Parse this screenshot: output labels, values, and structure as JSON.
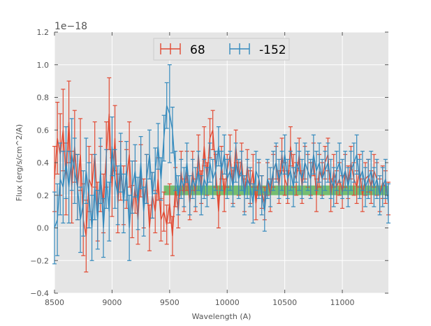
{
  "chart_data": {
    "type": "line",
    "title": "",
    "xlabel": "Wavelength (A)",
    "ylabel": "Flux (erg/s/cm^2/A)",
    "y_offset_label": "1e−18",
    "xlim": [
      8500,
      11400
    ],
    "ylim": [
      -0.4,
      1.2
    ],
    "x_ticks": [
      8500,
      9000,
      9500,
      10000,
      10500,
      11000
    ],
    "x_tick_labels": [
      "8500",
      "9000",
      "9500",
      "10000",
      "10500",
      "11000"
    ],
    "y_ticks": [
      -0.4,
      -0.2,
      0.0,
      0.2,
      0.4,
      0.6,
      0.8,
      1.0,
      1.2
    ],
    "y_tick_labels": [
      "−0.4",
      "−0.2",
      "0.0",
      "0.2",
      "0.4",
      "0.6",
      "0.8",
      "1.0",
      "1.2"
    ],
    "grid": true,
    "legend_position": "top-center",
    "band": {
      "x_start": 9450,
      "x_end": 11400,
      "y_low": 0.2,
      "y_high": 0.26,
      "color": "#4daf4a"
    },
    "x": [
      8500,
      8525,
      8550,
      8575,
      8600,
      8625,
      8650,
      8675,
      8700,
      8725,
      8750,
      8775,
      8800,
      8825,
      8850,
      8875,
      8900,
      8925,
      8950,
      8975,
      9000,
      9025,
      9050,
      9075,
      9100,
      9125,
      9150,
      9175,
      9200,
      9225,
      9250,
      9275,
      9300,
      9325,
      9350,
      9375,
      9400,
      9425,
      9450,
      9475,
      9500,
      9525,
      9550,
      9575,
      9600,
      9625,
      9650,
      9675,
      9700,
      9725,
      9750,
      9775,
      9800,
      9825,
      9850,
      9875,
      9900,
      9925,
      9950,
      9975,
      10000,
      10025,
      10050,
      10075,
      10100,
      10125,
      10150,
      10175,
      10200,
      10225,
      10250,
      10275,
      10300,
      10325,
      10350,
      10375,
      10400,
      10425,
      10450,
      10475,
      10500,
      10525,
      10550,
      10575,
      10600,
      10625,
      10650,
      10675,
      10700,
      10725,
      10750,
      10775,
      10800,
      10825,
      10850,
      10875,
      10900,
      10925,
      10950,
      10975,
      11000,
      11025,
      11050,
      11075,
      11100,
      11125,
      11150,
      11175,
      11200,
      11225,
      11250,
      11275,
      11300,
      11325,
      11350,
      11375,
      11400
    ],
    "series": [
      {
        "name": "68",
        "color": "#E24A33",
        "values": [
          0.3,
          0.55,
          0.45,
          0.6,
          0.3,
          0.65,
          0.25,
          0.5,
          0.25,
          0.45,
          0.05,
          -0.05,
          0.3,
          0.25,
          0.45,
          0.1,
          0.3,
          0.15,
          0.45,
          0.7,
          0.25,
          0.55,
          0.15,
          0.35,
          0.2,
          0.3,
          0.45,
          0.1,
          0.25,
          0.05,
          0.35,
          0.15,
          0.3,
          0.0,
          0.2,
          0.1,
          0.3,
          0.05,
          0.1,
          0.02,
          0.15,
          -0.05,
          0.25,
          0.1,
          0.35,
          0.2,
          0.35,
          0.15,
          0.35,
          0.2,
          0.45,
          0.25,
          0.5,
          0.3,
          0.55,
          0.6,
          0.35,
          0.1,
          0.4,
          0.2,
          0.35,
          0.45,
          0.25,
          0.5,
          0.3,
          0.42,
          0.2,
          0.38,
          0.25,
          0.35,
          0.15,
          0.3,
          0.22,
          0.15,
          0.3,
          0.2,
          0.35,
          0.4,
          0.25,
          0.45,
          0.3,
          0.25,
          0.5,
          0.35,
          0.3,
          0.45,
          0.25,
          0.4,
          0.35,
          0.3,
          0.42,
          0.2,
          0.35,
          0.3,
          0.4,
          0.45,
          0.2,
          0.35,
          0.25,
          0.3,
          0.22,
          0.35,
          0.28,
          0.4,
          0.3,
          0.25,
          0.35,
          0.2,
          0.3,
          0.32,
          0.25,
          0.35,
          0.3,
          0.2,
          0.28,
          0.25,
          0.18
        ],
        "errors": [
          0.2,
          0.22,
          0.25,
          0.25,
          0.22,
          0.25,
          0.22,
          0.22,
          0.2,
          0.22,
          0.22,
          0.22,
          0.2,
          0.2,
          0.2,
          0.18,
          0.2,
          0.18,
          0.2,
          0.22,
          0.18,
          0.2,
          0.18,
          0.18,
          0.18,
          0.18,
          0.2,
          0.16,
          0.16,
          0.15,
          0.16,
          0.15,
          0.15,
          0.14,
          0.14,
          0.13,
          0.13,
          0.13,
          0.12,
          0.12,
          0.12,
          0.12,
          0.12,
          0.1,
          0.12,
          0.1,
          0.12,
          0.1,
          0.12,
          0.1,
          0.12,
          0.1,
          0.12,
          0.1,
          0.12,
          0.12,
          0.1,
          0.1,
          0.1,
          0.1,
          0.1,
          0.12,
          0.1,
          0.1,
          0.1,
          0.1,
          0.1,
          0.1,
          0.1,
          0.1,
          0.1,
          0.1,
          0.1,
          0.1,
          0.1,
          0.1,
          0.1,
          0.1,
          0.1,
          0.1,
          0.1,
          0.1,
          0.12,
          0.1,
          0.1,
          0.1,
          0.1,
          0.1,
          0.1,
          0.1,
          0.1,
          0.1,
          0.1,
          0.1,
          0.1,
          0.1,
          0.1,
          0.1,
          0.1,
          0.1,
          0.1,
          0.1,
          0.1,
          0.1,
          0.1,
          0.1,
          0.1,
          0.1,
          0.1,
          0.1,
          0.1,
          0.1,
          0.1,
          0.1,
          0.1,
          0.1,
          0.1
        ]
      },
      {
        "name": "-152",
        "color": "#348ABD",
        "values": [
          0.0,
          0.05,
          0.3,
          0.25,
          0.4,
          0.25,
          0.45,
          0.35,
          0.25,
          0.05,
          0.15,
          0.35,
          0.2,
          0.0,
          0.25,
          0.05,
          0.35,
          0.0,
          0.3,
          0.1,
          0.5,
          0.3,
          0.2,
          0.4,
          0.15,
          0.35,
          0.0,
          0.25,
          0.35,
          0.15,
          0.4,
          0.1,
          0.3,
          0.45,
          0.2,
          0.35,
          0.5,
          0.3,
          0.55,
          0.75,
          0.7,
          0.6,
          0.35,
          0.2,
          0.3,
          0.25,
          0.4,
          0.2,
          0.3,
          0.25,
          0.35,
          0.2,
          0.3,
          0.25,
          0.4,
          0.3,
          0.35,
          0.5,
          0.35,
          0.45,
          0.3,
          0.35,
          0.25,
          0.4,
          0.3,
          0.35,
          0.2,
          0.3,
          0.25,
          0.15,
          0.35,
          0.3,
          0.2,
          0.1,
          0.3,
          0.25,
          0.35,
          0.4,
          0.3,
          0.35,
          0.45,
          0.3,
          0.35,
          0.25,
          0.4,
          0.35,
          0.3,
          0.4,
          0.35,
          0.3,
          0.45,
          0.35,
          0.4,
          0.3,
          0.35,
          0.4,
          0.3,
          0.25,
          0.35,
          0.4,
          0.3,
          0.35,
          0.25,
          0.35,
          0.4,
          0.45,
          0.3,
          0.35,
          0.25,
          0.3,
          0.35,
          0.25,
          0.3,
          0.2,
          0.25,
          0.3,
          0.15
        ],
        "errors": [
          0.22,
          0.22,
          0.22,
          0.22,
          0.22,
          0.22,
          0.22,
          0.2,
          0.2,
          0.2,
          0.2,
          0.2,
          0.2,
          0.2,
          0.2,
          0.18,
          0.2,
          0.18,
          0.18,
          0.18,
          0.18,
          0.18,
          0.18,
          0.18,
          0.18,
          0.18,
          0.2,
          0.16,
          0.16,
          0.16,
          0.16,
          0.15,
          0.15,
          0.15,
          0.14,
          0.14,
          0.14,
          0.13,
          0.14,
          0.14,
          0.3,
          0.14,
          0.12,
          0.12,
          0.12,
          0.12,
          0.12,
          0.12,
          0.12,
          0.12,
          0.12,
          0.12,
          0.12,
          0.12,
          0.12,
          0.12,
          0.12,
          0.12,
          0.12,
          0.12,
          0.12,
          0.12,
          0.12,
          0.12,
          0.12,
          0.12,
          0.12,
          0.12,
          0.12,
          0.12,
          0.12,
          0.12,
          0.12,
          0.12,
          0.12,
          0.12,
          0.12,
          0.12,
          0.12,
          0.12,
          0.12,
          0.12,
          0.12,
          0.12,
          0.12,
          0.12,
          0.12,
          0.12,
          0.12,
          0.12,
          0.12,
          0.12,
          0.12,
          0.12,
          0.12,
          0.12,
          0.12,
          0.12,
          0.12,
          0.12,
          0.12,
          0.12,
          0.12,
          0.12,
          0.12,
          0.12,
          0.12,
          0.12,
          0.12,
          0.12,
          0.12,
          0.12,
          0.12,
          0.12,
          0.12,
          0.12,
          0.12
        ]
      }
    ]
  }
}
